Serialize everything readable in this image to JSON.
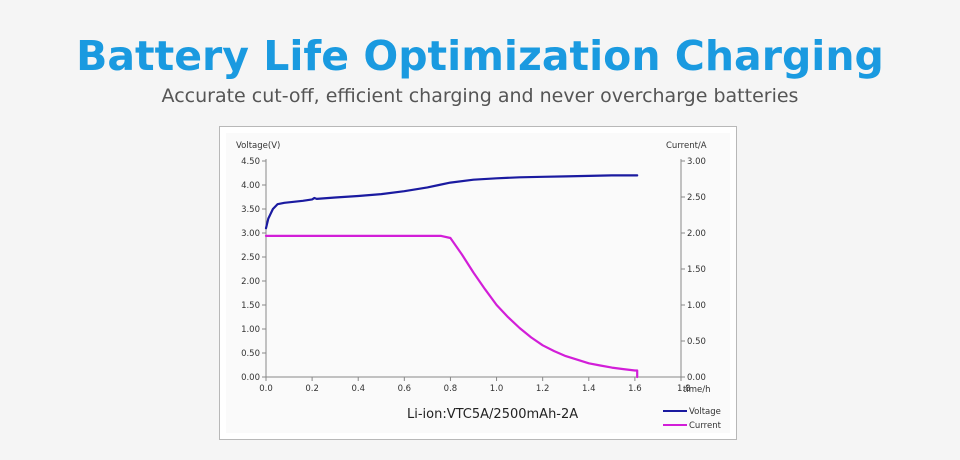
{
  "page": {
    "title": "Battery Life Optimization Charging",
    "subtitle": "Accurate cut-off, efficient charging and never overcharge batteries"
  },
  "colors": {
    "title": "#1a9ae0",
    "voltage": "#1a1aa0",
    "current": "#d21ed8"
  },
  "chart_data": {
    "type": "line",
    "caption": "Li-ion:VTC5A/2500mAh-2A",
    "xlabel": "time/h",
    "ylabel_left": "Voltage(V)",
    "ylabel_right": "Current/A",
    "xlim": [
      0,
      1.8
    ],
    "ylim_left": [
      0,
      4.5
    ],
    "ylim_right": [
      0,
      3.0
    ],
    "x_ticks": [
      "0.0",
      "0.2",
      "0.4",
      "0.6",
      "0.8",
      "1.0",
      "1.2",
      "1.4",
      "1.6",
      "1.8"
    ],
    "y_left_ticks": [
      "0.00",
      "0.50",
      "1.00",
      "1.50",
      "2.00",
      "2.50",
      "3.00",
      "3.50",
      "4.00",
      "4.50"
    ],
    "y_right_ticks": [
      "0.00",
      "0.50",
      "1.00",
      "1.50",
      "2.00",
      "2.50",
      "3.00"
    ],
    "grid": false,
    "legend_position": "bottom-right",
    "series": [
      {
        "name": "Voltage",
        "axis": "left",
        "x": [
          0.0,
          0.01,
          0.02,
          0.03,
          0.05,
          0.08,
          0.12,
          0.16,
          0.2,
          0.21,
          0.22,
          0.3,
          0.4,
          0.5,
          0.6,
          0.7,
          0.75,
          0.8,
          0.9,
          1.0,
          1.1,
          1.2,
          1.3,
          1.4,
          1.5,
          1.6,
          1.61
        ],
        "y": [
          3.1,
          3.3,
          3.4,
          3.5,
          3.6,
          3.63,
          3.65,
          3.67,
          3.7,
          3.73,
          3.71,
          3.74,
          3.77,
          3.81,
          3.87,
          3.95,
          4.0,
          4.05,
          4.11,
          4.14,
          4.16,
          4.17,
          4.18,
          4.19,
          4.2,
          4.2,
          4.2
        ]
      },
      {
        "name": "Current",
        "axis": "right",
        "x": [
          0.0,
          0.1,
          0.2,
          0.3,
          0.4,
          0.5,
          0.6,
          0.7,
          0.76,
          0.8,
          0.85,
          0.9,
          0.95,
          1.0,
          1.05,
          1.1,
          1.15,
          1.2,
          1.25,
          1.3,
          1.35,
          1.4,
          1.45,
          1.5,
          1.55,
          1.6,
          1.61,
          1.61
        ],
        "y": [
          1.96,
          1.96,
          1.96,
          1.96,
          1.96,
          1.96,
          1.96,
          1.96,
          1.96,
          1.93,
          1.7,
          1.45,
          1.22,
          1.0,
          0.83,
          0.68,
          0.55,
          0.44,
          0.36,
          0.29,
          0.24,
          0.19,
          0.16,
          0.13,
          0.11,
          0.09,
          0.09,
          0.0
        ]
      }
    ]
  }
}
